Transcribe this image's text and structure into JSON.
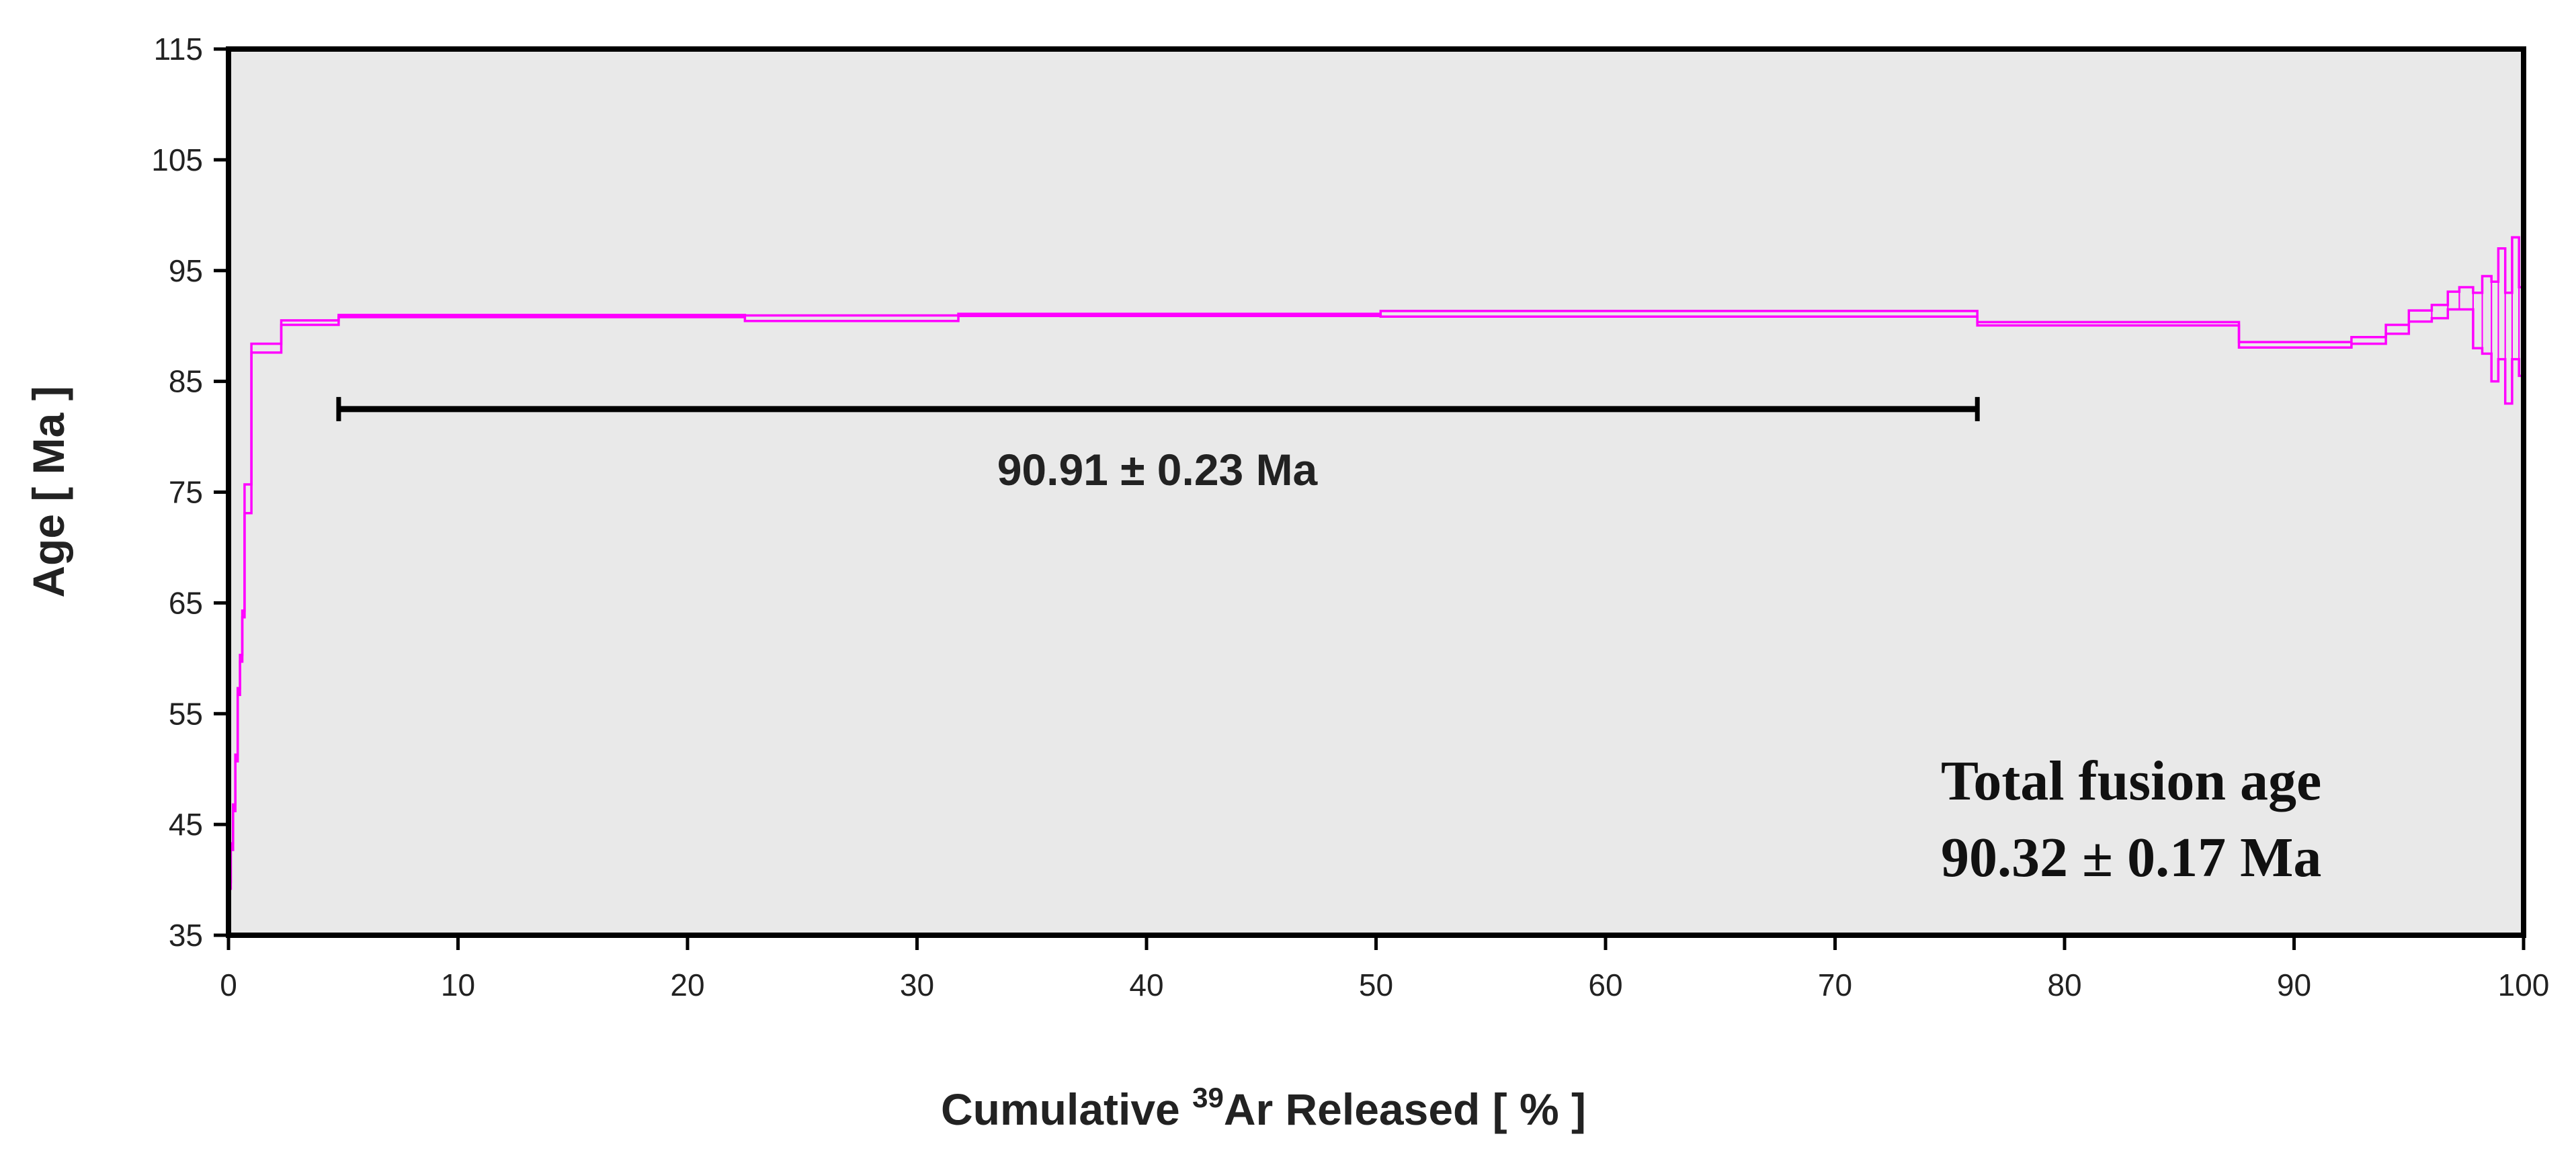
{
  "chart_data": {
    "type": "line",
    "xlabel_prefix": "Cumulative ",
    "xlabel_sup": "39",
    "xlabel_suffix": "Ar Released [ % ]",
    "ylabel": "Age [ Ma ]",
    "xlim": [
      0,
      100
    ],
    "ylim": [
      35,
      115
    ],
    "x_ticks": [
      "0",
      "10",
      "20",
      "30",
      "40",
      "50",
      "60",
      "70",
      "80",
      "90",
      "100"
    ],
    "y_ticks": [
      "35",
      "45",
      "55",
      "65",
      "75",
      "85",
      "95",
      "105",
      "115"
    ],
    "grid": false,
    "background": "#e9e9e9",
    "line_color": "#ff00ff",
    "bar_color": "#000000",
    "steps": [
      {
        "x0": 0.0,
        "x1": 0.1,
        "age": 39.5,
        "err": 0.3
      },
      {
        "x0": 0.1,
        "x1": 0.2,
        "age": 43.0,
        "err": 0.3
      },
      {
        "x0": 0.2,
        "x1": 0.3,
        "age": 46.5,
        "err": 0.3
      },
      {
        "x0": 0.3,
        "x1": 0.4,
        "age": 51.0,
        "err": 0.3
      },
      {
        "x0": 0.4,
        "x1": 0.5,
        "age": 57.0,
        "err": 0.3
      },
      {
        "x0": 0.5,
        "x1": 0.6,
        "age": 60.0,
        "err": 0.3
      },
      {
        "x0": 0.6,
        "x1": 0.7,
        "age": 64.0,
        "err": 0.3
      },
      {
        "x0": 0.7,
        "x1": 1.0,
        "age": 74.4,
        "err": 1.3
      },
      {
        "x0": 1.0,
        "x1": 2.3,
        "age": 88.0,
        "err": 0.4
      },
      {
        "x0": 2.3,
        "x1": 4.8,
        "age": 90.3,
        "err": 0.2
      },
      {
        "x0": 4.8,
        "x1": 22.5,
        "age": 90.9,
        "err": 0.1
      },
      {
        "x0": 22.5,
        "x1": 31.8,
        "age": 90.7,
        "err": 0.25
      },
      {
        "x0": 31.8,
        "x1": 50.2,
        "age": 91.0,
        "err": 0.1
      },
      {
        "x0": 50.2,
        "x1": 76.2,
        "age": 91.1,
        "err": 0.25
      },
      {
        "x0": 76.2,
        "x1": 87.6,
        "age": 90.2,
        "err": 0.15
      },
      {
        "x0": 87.6,
        "x1": 92.5,
        "age": 88.3,
        "err": 0.25
      },
      {
        "x0": 92.5,
        "x1": 94.0,
        "age": 88.7,
        "err": 0.3
      },
      {
        "x0": 94.0,
        "x1": 95.0,
        "age": 89.7,
        "err": 0.4
      },
      {
        "x0": 95.0,
        "x1": 96.0,
        "age": 90.9,
        "err": 0.5
      },
      {
        "x0": 96.0,
        "x1": 96.7,
        "age": 91.3,
        "err": 0.6
      },
      {
        "x0": 96.7,
        "x1": 97.2,
        "age": 92.3,
        "err": 0.8
      },
      {
        "x0": 97.2,
        "x1": 97.8,
        "age": 92.5,
        "err": 1.0
      },
      {
        "x0": 97.8,
        "x1": 98.2,
        "age": 90.5,
        "err": 2.5
      },
      {
        "x0": 98.2,
        "x1": 98.6,
        "age": 91.0,
        "err": 3.5
      },
      {
        "x0": 98.6,
        "x1": 98.9,
        "age": 89.5,
        "err": 4.5
      },
      {
        "x0": 98.9,
        "x1": 99.2,
        "age": 92.0,
        "err": 5.0
      },
      {
        "x0": 99.2,
        "x1": 99.5,
        "age": 88.0,
        "err": 5.0
      },
      {
        "x0": 99.5,
        "x1": 99.8,
        "age": 92.5,
        "err": 5.5
      },
      {
        "x0": 99.8,
        "x1": 100.0,
        "age": 89.5,
        "err": 4.0
      }
    ],
    "plateau": {
      "x_start": 4.8,
      "x_end": 76.2,
      "y": 82.5,
      "label": "90.91 ± 0.23 Ma"
    },
    "total_fusion": {
      "line1": "Total fusion age",
      "line2": "90.32 ±  0.17 Ma"
    }
  }
}
